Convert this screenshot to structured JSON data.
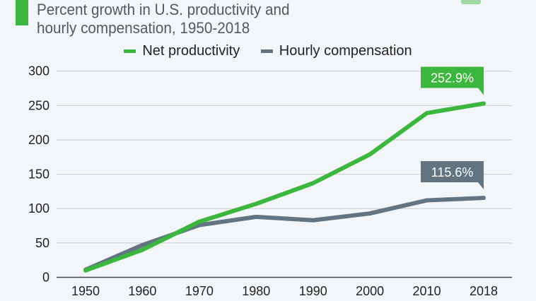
{
  "title": [
    "Percent growth in U.S. productivity and",
    "hourly compensation, 1950-2018"
  ],
  "chart_data": {
    "type": "line",
    "title": "Percent growth in U.S. productivity and hourly compensation, 1950-2018",
    "xlabel": "",
    "ylabel": "",
    "categories": [
      "1950",
      "1960",
      "1970",
      "1980",
      "1990",
      "2000",
      "2010",
      "2018"
    ],
    "yticks": [
      "0",
      "50",
      "100",
      "150",
      "200",
      "250",
      "300"
    ],
    "ylim": [
      0,
      300
    ],
    "grid": true,
    "legend": "top-center",
    "series": [
      {
        "name": "Net productivity",
        "color": "#3cb73e",
        "values": [
          10,
          40,
          81,
          107,
          137,
          179,
          239,
          252.9
        ],
        "end_label": "252.9%"
      },
      {
        "name": "Hourly compensation",
        "color": "#627381",
        "values": [
          11,
          47,
          76,
          88,
          83,
          93,
          112,
          115.6
        ],
        "end_label": "115.6%"
      }
    ]
  }
}
